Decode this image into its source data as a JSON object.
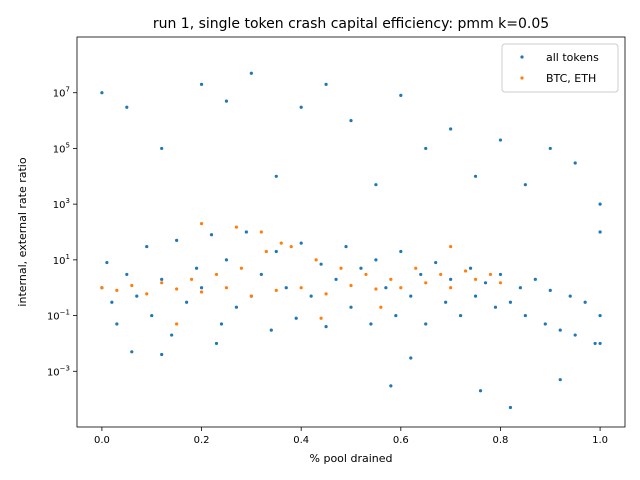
{
  "chart_data": {
    "type": "scatter",
    "title": "run 1, single token crash capital efficiency: pmm k=0.05",
    "xlabel": "% pool drained",
    "ylabel": "internal, external rate ratio",
    "xlim": [
      -0.05,
      1.05
    ],
    "ylim": [
      1e-05,
      1000000000
    ],
    "yscale": "log",
    "x_ticks": [
      {
        "value": 0.0,
        "label": "0.0"
      },
      {
        "value": 0.2,
        "label": "0.2"
      },
      {
        "value": 0.4,
        "label": "0.4"
      },
      {
        "value": 0.6,
        "label": "0.6"
      },
      {
        "value": 0.8,
        "label": "0.8"
      },
      {
        "value": 1.0,
        "label": "1.0"
      }
    ],
    "y_ticks": [
      {
        "value": 0.001,
        "base": "10",
        "exp": "−3"
      },
      {
        "value": 0.1,
        "base": "10",
        "exp": "−1"
      },
      {
        "value": 10,
        "base": "10",
        "exp": "1"
      },
      {
        "value": 1000,
        "base": "10",
        "exp": "3"
      },
      {
        "value": 100000,
        "base": "10",
        "exp": "5"
      },
      {
        "value": 10000000,
        "base": "10",
        "exp": "7"
      }
    ],
    "grid": false,
    "legend_position": "top-right",
    "series": [
      {
        "name": "all tokens",
        "color": "#1f77b4",
        "points": [
          [
            0.0,
            1.0
          ],
          [
            0.01,
            8.0
          ],
          [
            0.02,
            0.3
          ],
          [
            0.03,
            0.05
          ],
          [
            0.05,
            3.0
          ],
          [
            0.07,
            0.5
          ],
          [
            0.09,
            30.0
          ],
          [
            0.1,
            0.1
          ],
          [
            0.12,
            2.0
          ],
          [
            0.14,
            0.02
          ],
          [
            0.15,
            50.0
          ],
          [
            0.17,
            0.3
          ],
          [
            0.19,
            5.0
          ],
          [
            0.2,
            1.0
          ],
          [
            0.22,
            80.0
          ],
          [
            0.24,
            0.05
          ],
          [
            0.25,
            10.0
          ],
          [
            0.27,
            0.2
          ],
          [
            0.29,
            100.0
          ],
          [
            0.3,
            0.5
          ],
          [
            0.32,
            3.0
          ],
          [
            0.34,
            0.03
          ],
          [
            0.35,
            20.0
          ],
          [
            0.37,
            1.0
          ],
          [
            0.39,
            0.08
          ],
          [
            0.4,
            40.0
          ],
          [
            0.42,
            0.5
          ],
          [
            0.44,
            7.0
          ],
          [
            0.45,
            0.04
          ],
          [
            0.47,
            2.0
          ],
          [
            0.49,
            30.0
          ],
          [
            0.5,
            0.2
          ],
          [
            0.52,
            5.0
          ],
          [
            0.54,
            0.05
          ],
          [
            0.55,
            10.0
          ],
          [
            0.57,
            1.0
          ],
          [
            0.59,
            0.1
          ],
          [
            0.6,
            20.0
          ],
          [
            0.62,
            0.5
          ],
          [
            0.64,
            3.0
          ],
          [
            0.65,
            0.05
          ],
          [
            0.67,
            8.0
          ],
          [
            0.69,
            0.3
          ],
          [
            0.7,
            2.0
          ],
          [
            0.72,
            0.1
          ],
          [
            0.74,
            5.0
          ],
          [
            0.75,
            0.5
          ],
          [
            0.77,
            1.5
          ],
          [
            0.79,
            0.2
          ],
          [
            0.8,
            3.0
          ],
          [
            0.82,
            0.3
          ],
          [
            0.84,
            1.0
          ],
          [
            0.85,
            0.1
          ],
          [
            0.87,
            2.0
          ],
          [
            0.89,
            0.05
          ],
          [
            0.9,
            0.8
          ],
          [
            0.92,
            0.03
          ],
          [
            0.94,
            0.5
          ],
          [
            0.95,
            0.02
          ],
          [
            0.97,
            0.3
          ],
          [
            0.99,
            0.01
          ],
          [
            1.0,
            1000.0
          ],
          [
            1.0,
            0.01
          ],
          [
            1.0,
            100.0
          ],
          [
            1.0,
            0.1
          ],
          [
            0.0,
            10000000.0
          ],
          [
            0.05,
            3000000.0
          ],
          [
            0.12,
            100000.0
          ],
          [
            0.2,
            20000000.0
          ],
          [
            0.25,
            5000000.0
          ],
          [
            0.3,
            50000000.0
          ],
          [
            0.35,
            10000.0
          ],
          [
            0.4,
            3000000.0
          ],
          [
            0.45,
            20000000.0
          ],
          [
            0.5,
            1000000.0
          ],
          [
            0.55,
            5000.0
          ],
          [
            0.6,
            8000000.0
          ],
          [
            0.65,
            100000.0
          ],
          [
            0.7,
            500000.0
          ],
          [
            0.75,
            10000.0
          ],
          [
            0.8,
            200000.0
          ],
          [
            0.85,
            5000.0
          ],
          [
            0.9,
            100000.0
          ],
          [
            0.95,
            30000.0
          ],
          [
            0.82,
            5e-05
          ],
          [
            0.76,
            0.0002
          ],
          [
            0.58,
            0.0003
          ],
          [
            0.06,
            0.005
          ],
          [
            0.12,
            0.004
          ],
          [
            0.23,
            0.01
          ],
          [
            0.62,
            0.003
          ],
          [
            0.92,
            0.0005
          ]
        ]
      },
      {
        "name": "BTC, ETH",
        "color": "#ff7f0e",
        "points": [
          [
            0.0,
            1.0
          ],
          [
            0.03,
            0.8
          ],
          [
            0.06,
            1.2
          ],
          [
            0.09,
            0.6
          ],
          [
            0.12,
            1.5
          ],
          [
            0.15,
            0.9
          ],
          [
            0.18,
            2.0
          ],
          [
            0.2,
            0.7
          ],
          [
            0.23,
            3.0
          ],
          [
            0.25,
            1.0
          ],
          [
            0.28,
            5.0
          ],
          [
            0.3,
            0.5
          ],
          [
            0.33,
            20.0
          ],
          [
            0.35,
            0.8
          ],
          [
            0.38,
            30.0
          ],
          [
            0.4,
            1.0
          ],
          [
            0.43,
            10.0
          ],
          [
            0.45,
            0.6
          ],
          [
            0.48,
            5.0
          ],
          [
            0.5,
            1.2
          ],
          [
            0.53,
            3.0
          ],
          [
            0.55,
            0.9
          ],
          [
            0.58,
            2.0
          ],
          [
            0.6,
            1.0
          ],
          [
            0.63,
            5.0
          ],
          [
            0.65,
            1.5
          ],
          [
            0.68,
            3.0
          ],
          [
            0.7,
            1.0
          ],
          [
            0.73,
            4.0
          ],
          [
            0.75,
            2.0
          ],
          [
            0.78,
            3.0
          ],
          [
            0.8,
            1.5
          ],
          [
            0.2,
            200.0
          ],
          [
            0.27,
            150.0
          ],
          [
            0.32,
            100.0
          ],
          [
            0.44,
            0.08
          ],
          [
            0.15,
            0.05
          ],
          [
            0.7,
            30.0
          ],
          [
            0.36,
            40.0
          ],
          [
            0.56,
            0.2
          ]
        ]
      }
    ]
  }
}
